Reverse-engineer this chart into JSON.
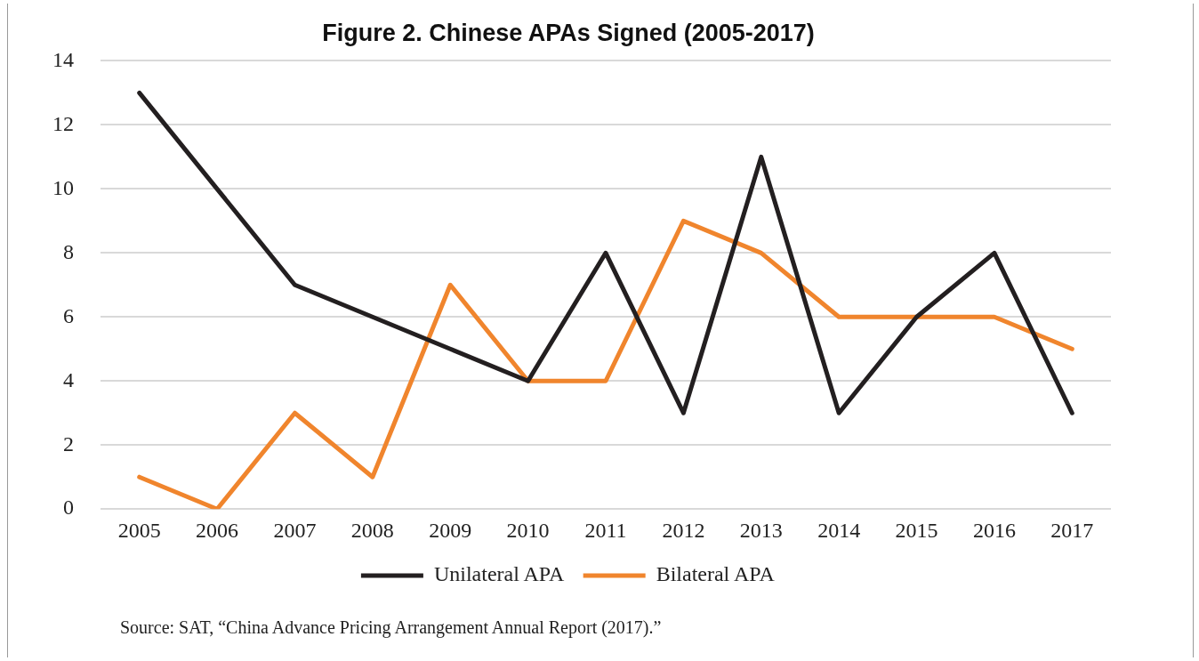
{
  "chart_data": {
    "type": "line",
    "title": "Figure 2. Chinese APAs Signed (2005-2017)",
    "categories": [
      "2005",
      "2006",
      "2007",
      "2008",
      "2009",
      "2010",
      "2011",
      "2012",
      "2013",
      "2014",
      "2015",
      "2016",
      "2017"
    ],
    "series": [
      {
        "name": "Unilateral APA",
        "color": "#231f20",
        "values": [
          13,
          10,
          7,
          6,
          5,
          4,
          8,
          3,
          11,
          3,
          6,
          8,
          3
        ]
      },
      {
        "name": "Bilateral APA",
        "color": "#f0852d",
        "values": [
          1,
          0,
          3,
          1,
          7,
          4,
          4,
          9,
          8,
          6,
          6,
          6,
          5
        ]
      }
    ],
    "ylim": [
      0,
      14
    ],
    "yticks": [
      0,
      2,
      4,
      6,
      8,
      10,
      12,
      14
    ],
    "grid": "y",
    "legend": "bottom",
    "marker": "none",
    "line_style": "solid",
    "annotations": [
      "Source: SAT, “China Advance Pricing Arrangement Annual Report (2017).”"
    ]
  }
}
